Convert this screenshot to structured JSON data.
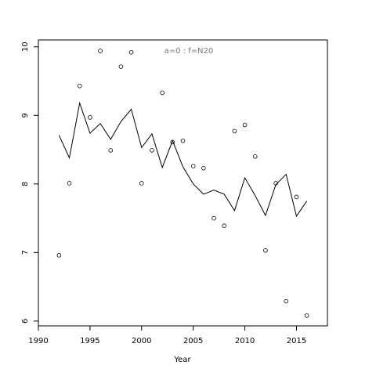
{
  "chart_data": {
    "type": "scatter-line",
    "xlabel": "Year",
    "annotation": "a=0  :  f=N20",
    "annotation_color": "#777777",
    "x": [
      1992,
      1993,
      1994,
      1995,
      1996,
      1997,
      1998,
      1999,
      2000,
      2001,
      2002,
      2003,
      2004,
      2005,
      2006,
      2007,
      2008,
      2009,
      2010,
      2011,
      2012,
      2013,
      2014,
      2015,
      2016
    ],
    "series": [
      {
        "mode": "points",
        "color": "#000000",
        "values": [
          6.96,
          8.01,
          9.43,
          8.97,
          9.94,
          8.49,
          9.71,
          9.92,
          8.01,
          8.49,
          9.33,
          8.61,
          8.63,
          8.26,
          8.23,
          7.5,
          7.39,
          8.77,
          8.86,
          8.4,
          7.03,
          8.01,
          6.29,
          7.81,
          6.08
        ]
      },
      {
        "mode": "line",
        "color": "#000000",
        "values": [
          8.71,
          8.38,
          9.18,
          8.74,
          8.88,
          8.65,
          8.91,
          9.09,
          8.53,
          8.73,
          8.24,
          8.63,
          8.25,
          8.0,
          7.85,
          7.91,
          7.85,
          7.61,
          8.09,
          7.83,
          7.54,
          7.99,
          8.14,
          7.53,
          7.75
        ]
      }
    ],
    "xlim": [
      1990,
      2018
    ],
    "ylim": [
      5.93,
      10.1
    ],
    "xticks": [
      1990,
      1995,
      2000,
      2005,
      2010,
      2015
    ],
    "yticks": [
      6,
      7,
      8,
      9,
      10
    ]
  }
}
